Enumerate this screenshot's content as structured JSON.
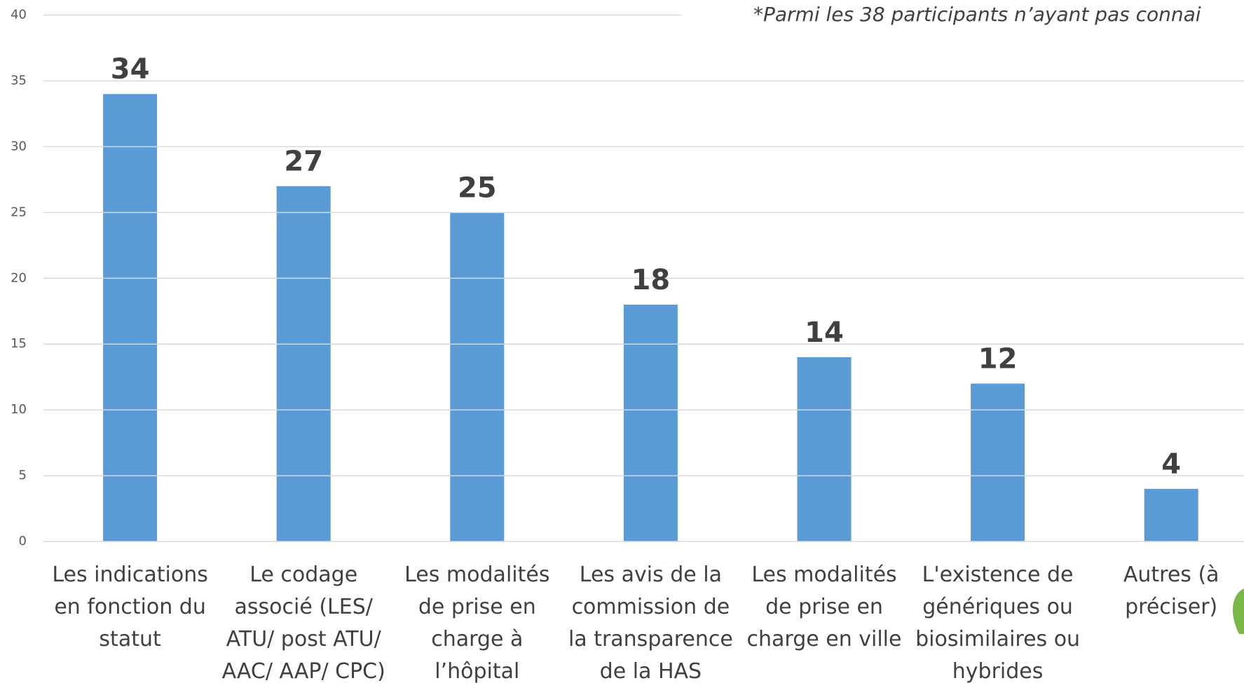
{
  "chart_data": {
    "type": "bar",
    "note": "*Parmi les 38 participants n’ayant pas connai",
    "categories": [
      "Les indications\nen fonction du\nstatut",
      "Le codage\nassocié (LES/\nATU/ post ATU/\nAAC/ AAP/ CPC)",
      "Les modalités\nde prise en\ncharge à\nl’hôpital",
      "Les avis de la\ncommission de\nla transparence\nde la HAS",
      "Les modalités\nde prise en\ncharge en ville",
      "L'existence de\ngénériques ou\nbiosimilaires ou\nhybrides",
      "Autres (à\npréciser)"
    ],
    "values": [
      34,
      27,
      25,
      18,
      14,
      12,
      4
    ],
    "color": "#5b9bd5",
    "ylim": [
      0,
      40
    ],
    "yticks": [
      0,
      5,
      10,
      15,
      20,
      25,
      30,
      35,
      40
    ],
    "grid": true
  }
}
